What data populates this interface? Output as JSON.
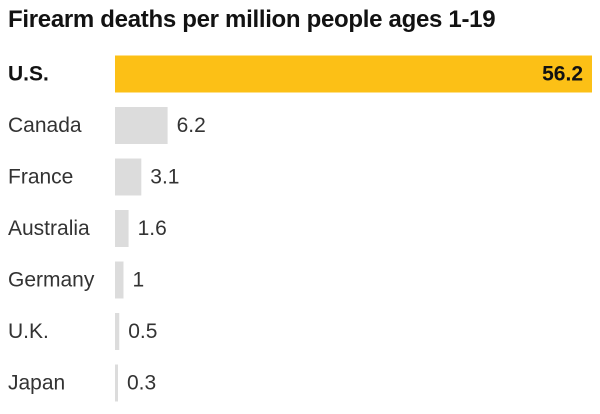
{
  "chart_data": {
    "type": "bar",
    "orientation": "horizontal",
    "title": "Firearm deaths per million people ages 1-19",
    "xlabel": "",
    "ylabel": "",
    "categories": [
      "U.S.",
      "Canada",
      "France",
      "Australia",
      "Germany",
      "U.K.",
      "Japan"
    ],
    "values": [
      56.2,
      6.2,
      3.1,
      1.6,
      1,
      0.5,
      0.3
    ],
    "value_labels": [
      "56.2",
      "6.2",
      "3.1",
      "1.6",
      "1",
      "0.5",
      "0.3"
    ],
    "xlim": [
      0,
      56.2
    ],
    "grid": false,
    "legend": "none",
    "highlight_category": "U.S.",
    "colors": {
      "highlight": "#fcc016",
      "default": "#dcdcdc",
      "text": "#121212"
    }
  }
}
